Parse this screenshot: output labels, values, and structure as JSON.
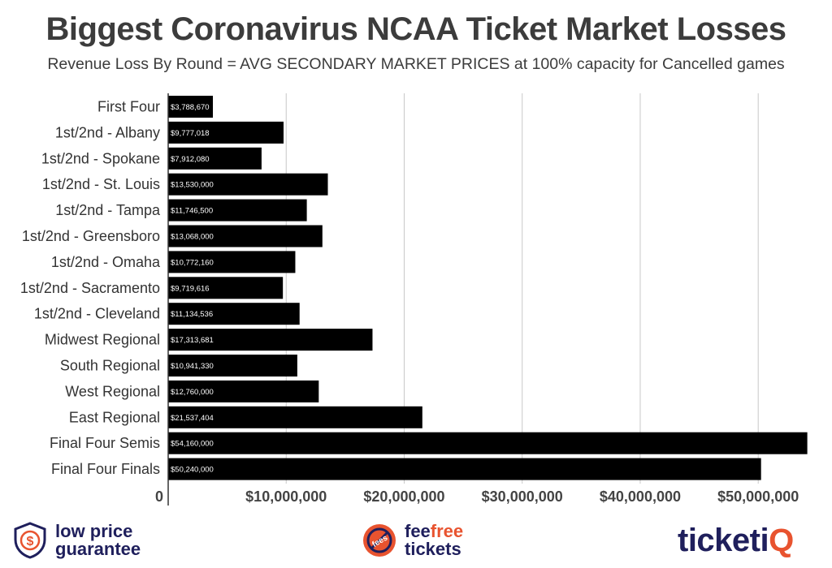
{
  "title": "Biggest Coronavirus NCAA Ticket Market Losses",
  "subtitle": "Revenue Loss By Round = AVG SECONDARY MARKET PRICES at 100% capacity for Cancelled games",
  "chart_data": {
    "type": "bar",
    "orientation": "horizontal",
    "categories": [
      "First Four",
      "1st/2nd - Albany",
      "1st/2nd - Spokane",
      "1st/2nd - St. Louis",
      "1st/2nd - Tampa",
      "1st/2nd - Greensboro",
      "1st/2nd - Omaha",
      "1st/2nd - Sacramento",
      "1st/2nd - Cleveland",
      "Midwest Regional",
      "South Regional",
      "West Regional",
      "East Regional",
      "Final Four Semis",
      "Final Four Finals"
    ],
    "values": [
      3788670,
      9777018,
      7912080,
      13530000,
      11746500,
      13068000,
      10772160,
      9719616,
      11134536,
      17313681,
      10941330,
      12760000,
      21537404,
      54160000,
      50240000
    ],
    "data_labels": [
      "$3,788,670",
      "$9,777,018",
      "$7,912,080",
      "$13,530,000",
      "$11,746,500",
      "$13,068,000",
      "$10,772,160",
      "$9,719,616",
      "$11,134,536",
      "$17,313,681",
      "$10,941,330",
      "$12,760,000",
      "$21,537,404",
      "$54,160,000",
      "$50,240,000"
    ],
    "x_ticks": [
      0,
      10000000,
      20000000,
      30000000,
      40000000,
      50000000
    ],
    "x_tick_labels": [
      "0",
      "$10,000,000",
      "$20,000,000",
      "$30,000,000",
      "$40,000,000",
      "$50,000,000"
    ],
    "xlim": [
      0,
      54600000
    ],
    "grid": true,
    "colors": {
      "bar": "#000000",
      "grid": "#c8c8c8",
      "axis": "#333333"
    }
  },
  "footer": {
    "low_price": {
      "line1": "low price",
      "line2": "guarantee",
      "icon": "shield-dollar-icon"
    },
    "fee_free": {
      "line1": "feefree",
      "line1_plain": "fee",
      "line1_accent": "free",
      "line2": "tickets",
      "badge": "fees",
      "icon": "no-fees-icon"
    },
    "logo": {
      "text_plain": "ticketi",
      "text_accent": "Q"
    }
  }
}
